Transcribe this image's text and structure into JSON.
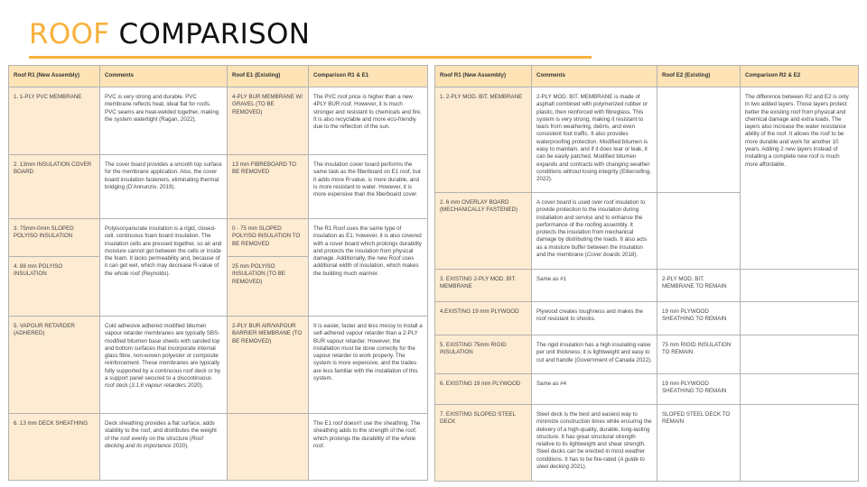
{
  "title": {
    "highlight": "ROOF",
    "rest": "COMPARISON"
  },
  "colors": {
    "accent": "#f8b13c",
    "header_bg": "#fde3b6",
    "cell_bg": "#fdebd2"
  },
  "left_table": {
    "headers": [
      "Roof R1 (New Assembly)",
      "Comments",
      "Roof E1 (Existing)",
      "Comparison R1 & E1"
    ],
    "rows": [
      {
        "item": "1. 1-PLY PVC MEMBRANE",
        "comment": "PVC is very strong and durable. PVC membrane reflects heat, ideal flat for roofs. PVC seams are heat-welded together, making the system watertight (Ragan, 2022).",
        "existing": "4-PLY BUR MEMBRANE W/ GRAVEL (TO BE REMOVED)",
        "comparison": "The PVC roof price is higher than a new 4PLY BUR roof. However, it is much stronger and resistant to chemicals and fire. It is also recyclable and more eco-friendly due to the reflection of the sun."
      },
      {
        "item": "2. 13mm INSULATION COVER BOARD",
        "comment": "The cover board provides a smooth top surface for the membrane application. Also, the cover board insulation fasteners, eliminating thermal bridging (D'Annunzio, 2019).",
        "existing": "13 mm FIBREBOARD TO BE REMOVED",
        "comparison": "The insulation cover board performs the same task as the fiberboard on E1 roof, but it adds more R-value, is more durable, and is more resistant to water. However, it is more expensive than the fiberboard cover."
      },
      {
        "item": "3. 75mm-0mm SLOPED POLYISO INSULATION",
        "comment": "Polyisocyanurate insulation is a rigid, closed-cell, continuous foam board insulation. The insulation cells are pressed together, so air and moisture cannot get between the cells or inside the foam. It lacks permeability and, because of it can get wet, which may decrease R-value of the whole roof (Reynolds).",
        "existing": "0 - 75 mm SLOPED POLYISO INSULATION TO BE REMOVED",
        "comparison": "The R1 Roof uses the same type of insulation as E1; however, it is also covered with a cover board which prolongs durability and protects the insulation from physical damage. Additionally, the new Roof uses additional width of insulation, which makes the building much warmer."
      },
      {
        "item": "4. 88 mm POLYISO INSULATION",
        "existing": "25 mm POLYISO INSULATION (TO BE REMOVED)"
      },
      {
        "item": "5. VAPOUR RETARDER (ADHERED)",
        "comment": "Cold adhesive adhered modified bitumen vapour retarder membranes are typically SBS-modified bitumen base sheets with sanded top and bottom surfaces that incorporate internal glass fibre, non-woven polyester or composite reinforcement. These membranes are typically fully supported by a continuous roof deck or by a support panel secured to a discontinuous roof deck (",
        "comment_italic": "3.1.6 vapour retarders",
        "comment_tail": " 2020).",
        "existing": "2-PLY BUR AIR/VAPOUR BARRIER MEMBRANE (TO BE REMOVED)",
        "comparison": "It is easier, faster and less messy to install a self-adhered vapour retarder than a 2-PLY BUR vapour retarder. However, the installation must be done correctly for the vapour retarder to work properly. The system is more expensive, and the trades are less familiar with the installation of this system."
      },
      {
        "item": "6. 13 mm DECK SHEATHING",
        "comment": "Deck sheathing provides a flat surface, adds stability to the roof, and distributes the weight of the roof evenly on the structure (",
        "comment_italic": "Roof decking and its importance",
        "comment_tail": " 2020).",
        "existing": "",
        "comparison": "The E1 roof doesn't use the sheathing. The sheathing adds to the strength of the roof, which prolongs the durability of the whole roof."
      }
    ]
  },
  "right_table": {
    "headers": [
      "Roof R1 (New Assembly)",
      "Comments",
      "Roof E2 (Existing)",
      "Comparison R2 & E2"
    ],
    "rows": [
      {
        "item": "1. 2-PLY MOD. BIT. MEMBRANE",
        "comment": "2-PLY MOD. BIT. MEMBRANE is made of asphalt combined with polymerized rubber or plastic, then reinforced with fibreglass. This system is very strong, making it resistant to tears from weathering, debris, and even consistent foot traffic. It also provides waterproofing protection. Modified bitumen is easy to maintain, and if it does tear or leak, it can be easily patched. Modified bitumen expands and contracts with changing weather conditions without losing integrity (Eliteroofing, 2022).",
        "existing": "",
        "comparison": "The difference between R2 and E2 is only in two added layers. Those layers protect better the existing roof from physical and chemical damage and extra loads. The layers also increase the water resistance ability of the roof. It allows the roof to be more durable and work for another 10 years. Adding 2 new layers instead of installing a complete new roof is much more affordable."
      },
      {
        "item": "2. 6 mm OVERLAY BOARD (MECHANICALLY FASTENED)",
        "comment": "A cover board is used over roof insulation to provide protection to the insulation during installation and service and to enhance the performance of the roofing assembly. It protects the insulation from mechanical damage by distributing the loads. It also acts as a moisture buffer between the insulation and the membrane (",
        "comment_italic": "Cover boards",
        "comment_tail": " 2018).",
        "existing": ""
      },
      {
        "item": "3. EXISTING 2-PLY MOD. BIT. MEMBRANE",
        "comment": "Same as #1",
        "existing": "2-PLY MOD. BIT. MEMBRANE TO REMAIN",
        "comparison": ""
      },
      {
        "item": "4.EXISTING 19 mm PLYWOOD",
        "comment": "Plywood creates toughness and makes the roof resistant to shocks.",
        "existing": "19 mm PLYWOOD SHEATHING TO REMAIN",
        "comparison": ""
      },
      {
        "item": "5. EXISTING 75mm RIGID INSULATION",
        "comment": "The rigid insulation has a high insulating value per unit thickness; it is lightweight and easy to cut and handle (Government of Canada 2022).",
        "existing": "75 mm RIGID INSULATION TO REMAIN",
        "comparison": ""
      },
      {
        "item": "6. EXISTING 19 mm PLYWOOD",
        "comment": "Same as #4",
        "existing": "19 mm PLYWOOD SHEATHING TO REMAIN",
        "comparison": ""
      },
      {
        "item": "7. EXISTING SLOPED STEEL DECK",
        "comment": "Steel deck is the best and easiest way to minimize construction times while ensuring the delivery of a high-quality, durable, long-lasting structure. It has great structural strength relative to its lightweight and shear strength. Steel decks can be erected in most weather conditions. It has to be fire-rated (",
        "comment_italic": "A guide to steel decking",
        "comment_tail": " 2021).",
        "existing": "SLOPED STEEL DECK TO REMAIN",
        "comparison": ""
      }
    ]
  }
}
